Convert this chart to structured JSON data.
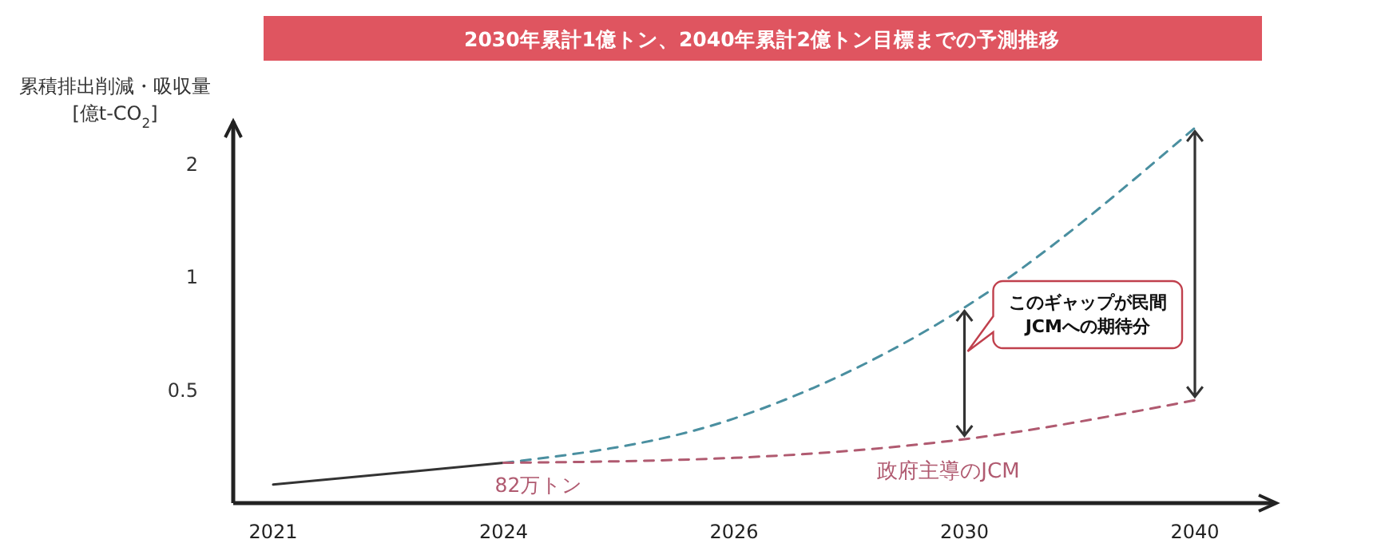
{
  "chart_data": {
    "type": "line",
    "title": "2030年累計1億トン、2040年累計2億トン目標までの予測推移",
    "ylabel": "累積排出削減・吸収量\n[億t-CO$_{2}$]",
    "categories": [
      "2021",
      "2024",
      "2026",
      "2030",
      "2040"
    ],
    "log": true,
    "ylim": [
      0.25,
      2.6
    ],
    "yticks": [
      0.5,
      1,
      2
    ],
    "grid": false,
    "legend": false,
    "marker": "none",
    "series": [
      {
        "color": "#333333",
        "line_style": "solid",
        "values": [
          0.28,
          0.32,
          null,
          null,
          null
        ]
      },
      {
        "color": "#4a8fa0",
        "line_style": "dashed",
        "values": [
          null,
          0.32,
          0.42,
          0.83,
          2.5
        ]
      },
      {
        "name": "政府主導のJCM",
        "color": "#b05a70",
        "line_style": "dashed",
        "values": [
          null,
          0.32,
          0.33,
          0.37,
          0.47
        ]
      }
    ],
    "annotations": [
      {
        "text": "82万トン",
        "x": "2024",
        "y": 0.32
      },
      "このギャップが民間JCMへの期待分"
    ]
  }
}
